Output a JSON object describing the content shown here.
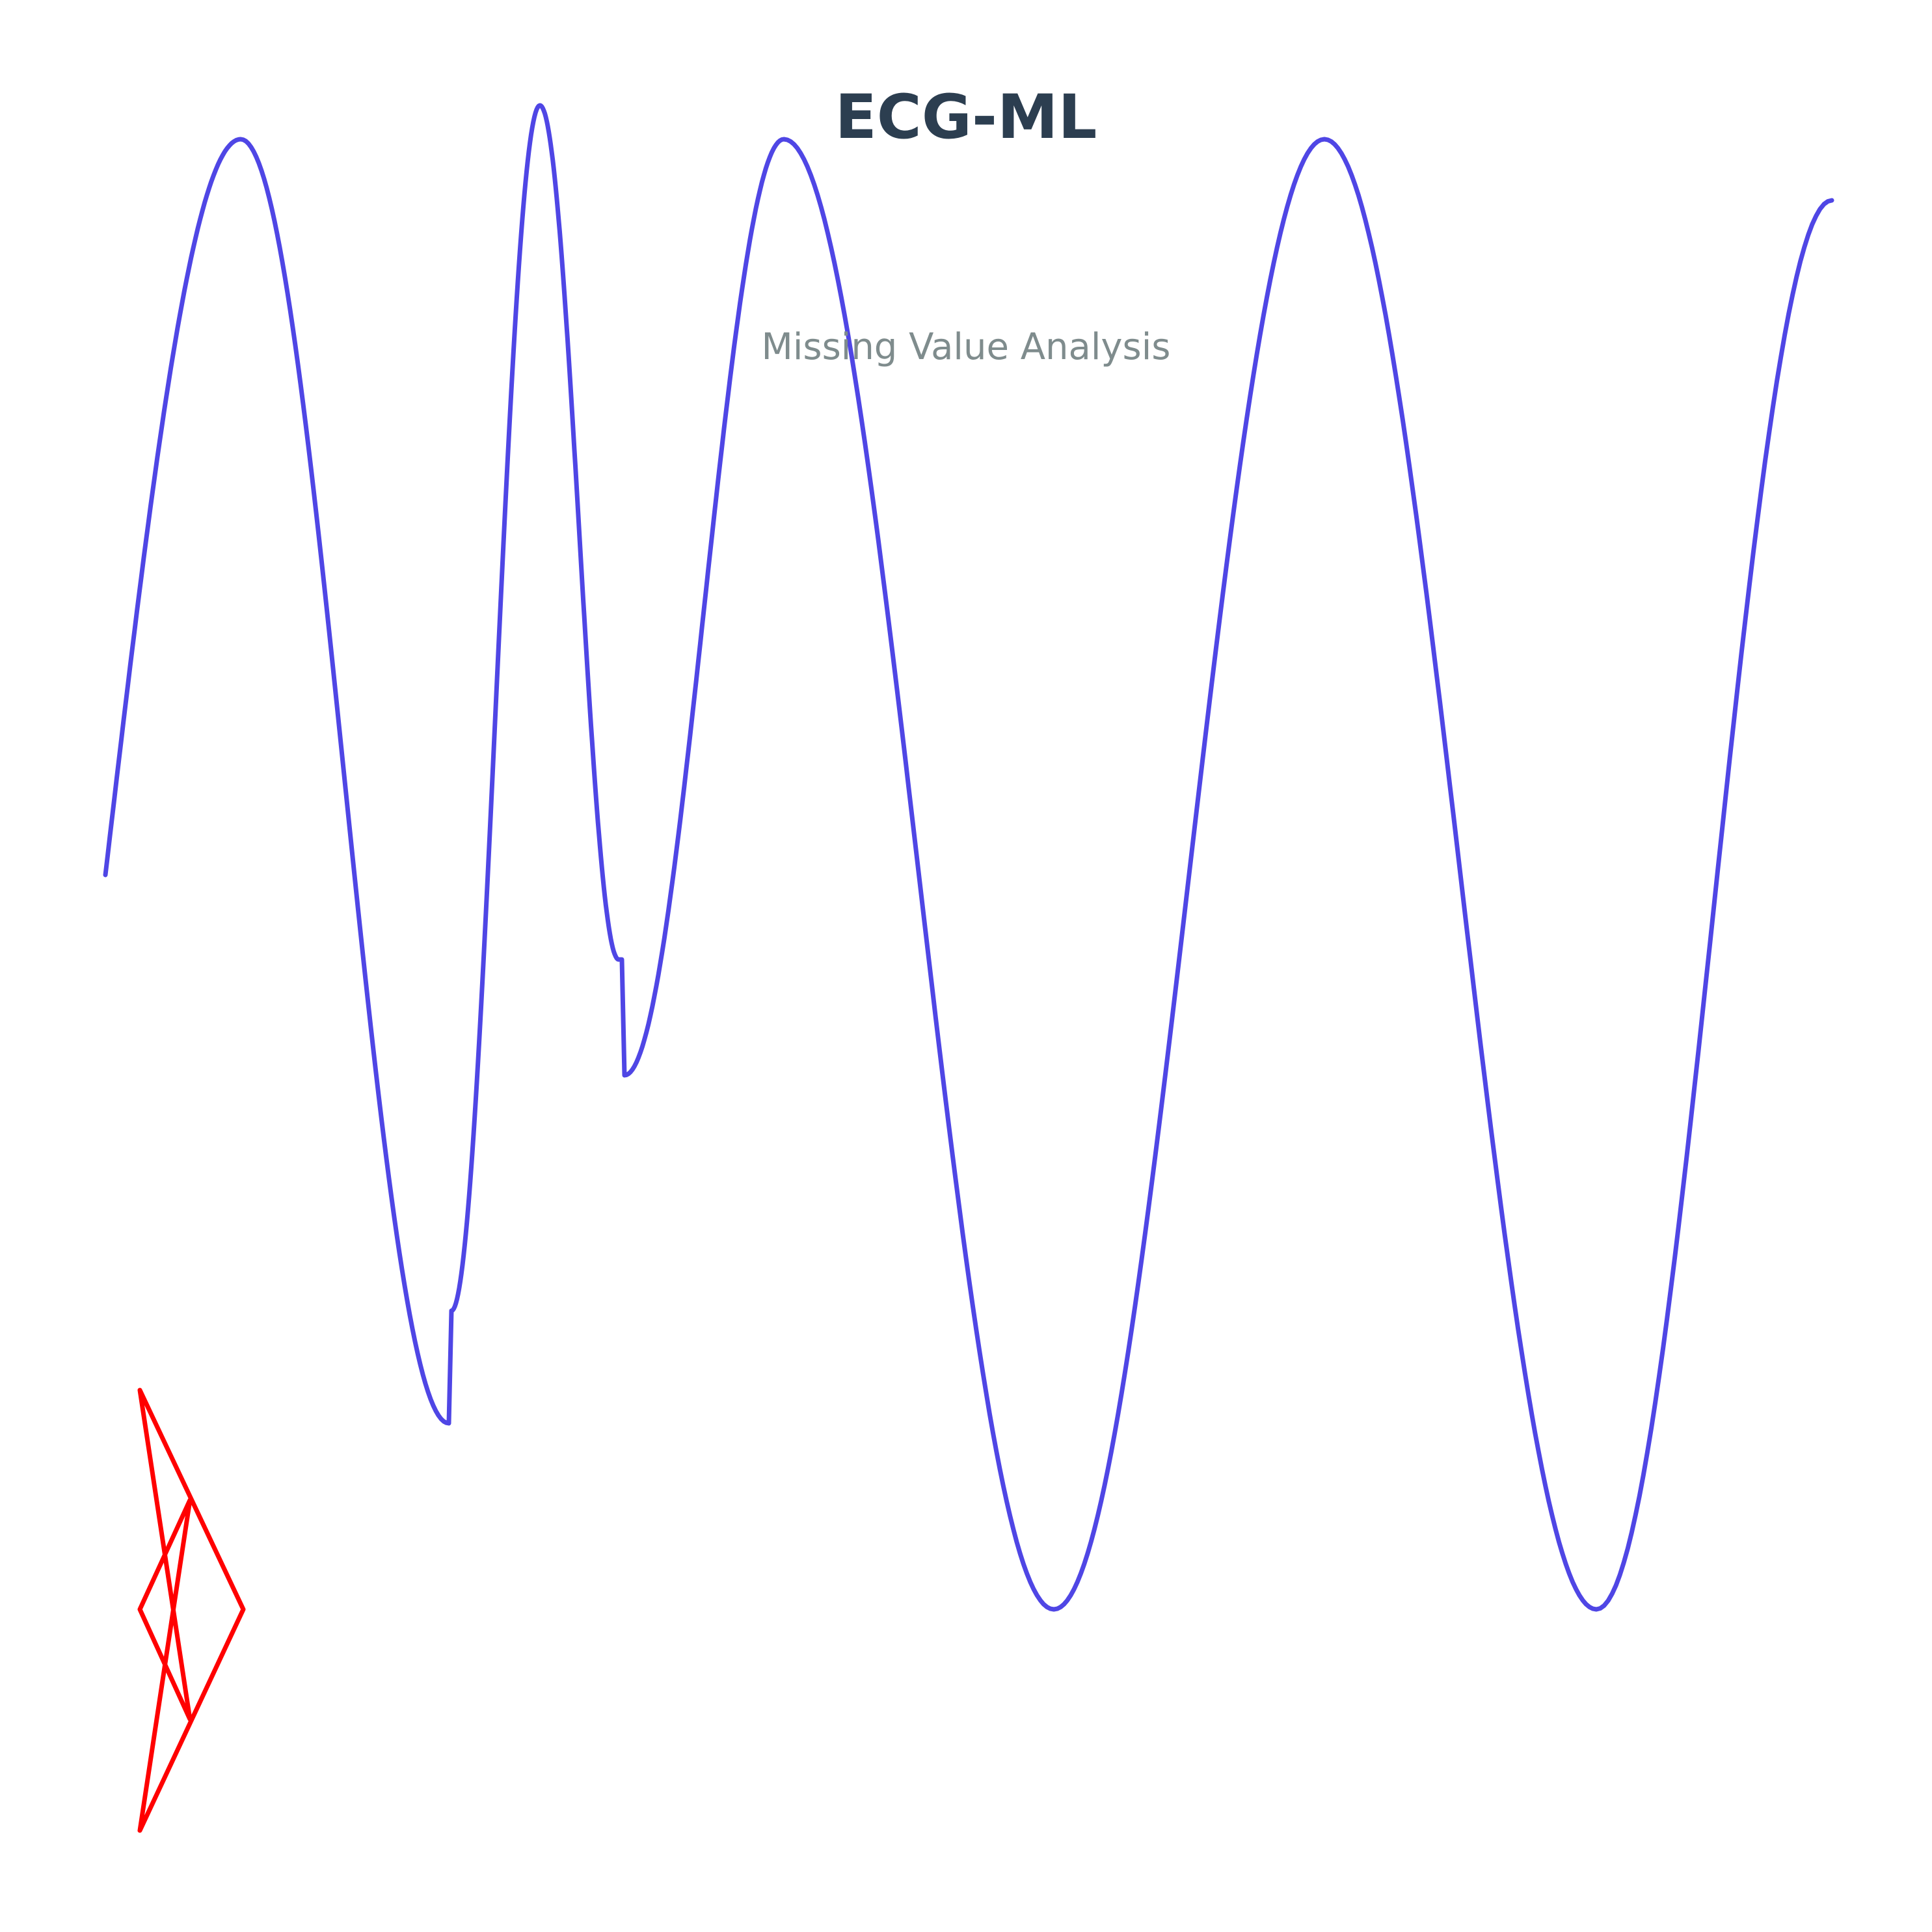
{
  "header": {
    "title": "ECG-ML",
    "subtitle": "Missing Value Analysis"
  },
  "colors": {
    "background": "#ffffff",
    "title": "#2c3e50",
    "subtitle": "#7f8c8d",
    "waveform": "#4f46e5",
    "logo": "#ff0000"
  },
  "graphics": {
    "waveform": "ecg-style-waveform",
    "logo": "red-star-logo"
  }
}
